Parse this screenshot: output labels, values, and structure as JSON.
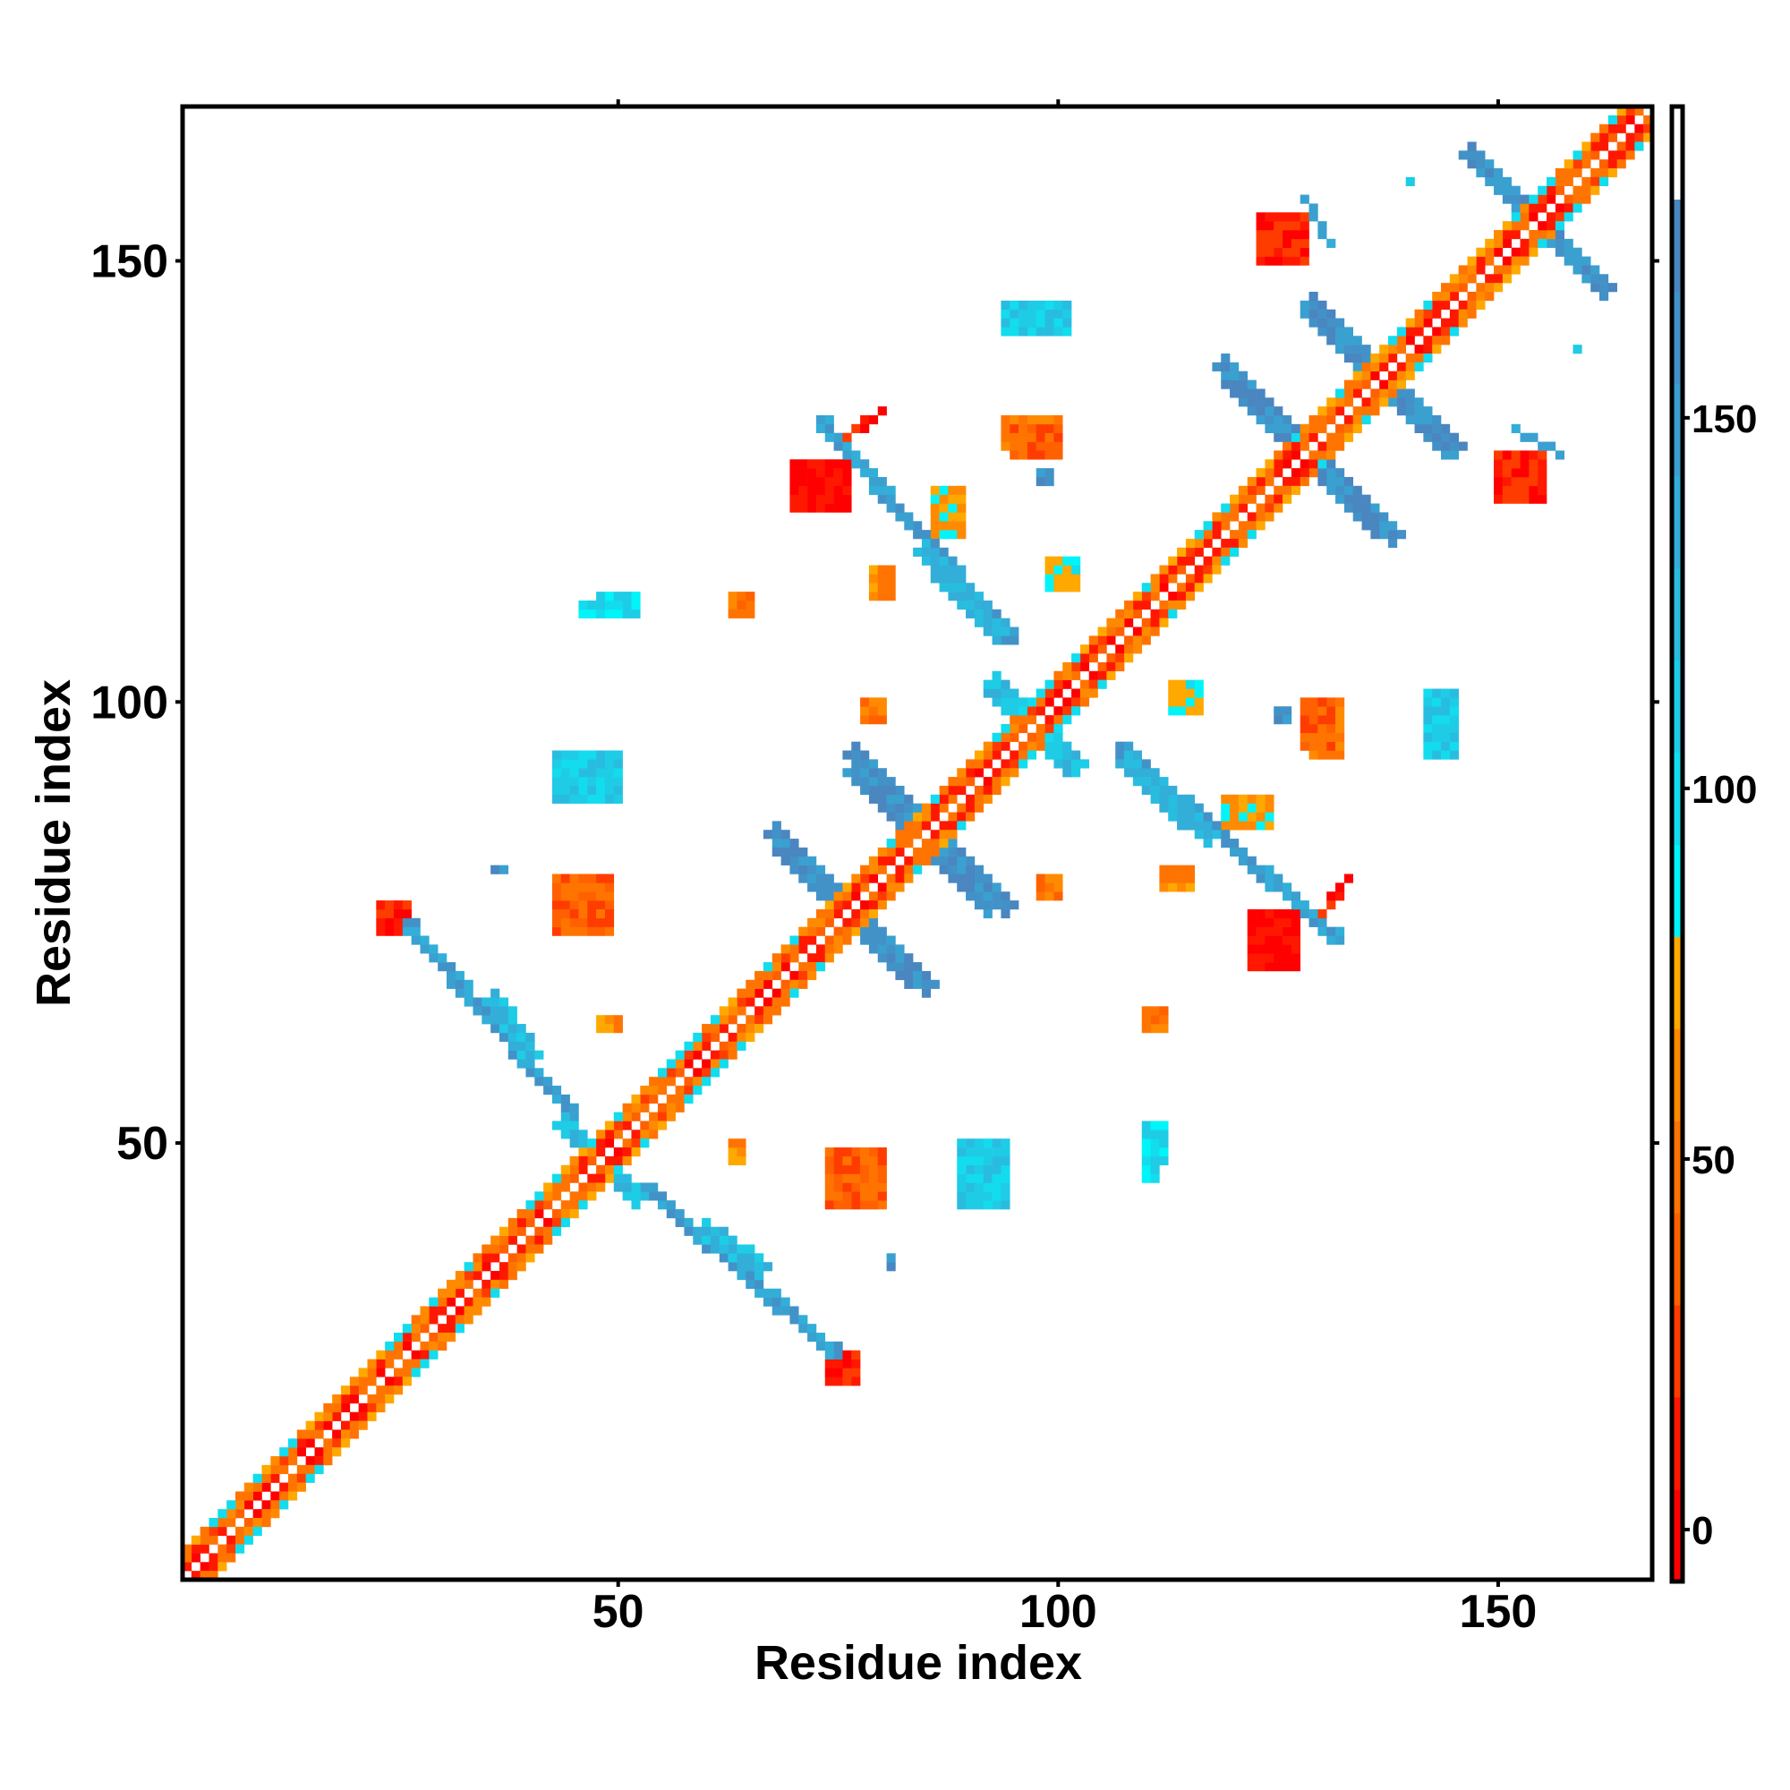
{
  "chart_data": {
    "type": "heatmap",
    "title": "",
    "xlabel": "Residue index",
    "ylabel": "Residue index",
    "n_residues": 167,
    "xlim": [
      0.5,
      167.5
    ],
    "ylim": [
      0.5,
      167.5
    ],
    "x_ticks": [
      50,
      100,
      150
    ],
    "y_ticks": [
      50,
      100,
      150
    ],
    "x_tick_labels": [
      "50",
      "100",
      "150"
    ],
    "y_tick_labels": [
      "50",
      "100",
      "150"
    ],
    "symmetric": true,
    "grid": false,
    "colorbar": {
      "placement": "right",
      "range": [
        -7,
        192
      ],
      "ticks": [
        0,
        50,
        100,
        150
      ],
      "tick_labels": [
        "0",
        "50",
        "100",
        "150"
      ],
      "bands": [
        {
          "max": 5.4,
          "color": "#ff0000"
        },
        {
          "max": 17.9,
          "color": "#ff1800"
        },
        {
          "max": 30.3,
          "color": "#ff3c00"
        },
        {
          "max": 42.7,
          "color": "#ff6000"
        },
        {
          "max": 55.1,
          "color": "#ff7400"
        },
        {
          "max": 67.6,
          "color": "#ff8a00"
        },
        {
          "max": 80.0,
          "color": "#ffa800"
        },
        {
          "max": 92.4,
          "color": "#00f4f8"
        },
        {
          "max": 104.9,
          "color": "#12dced"
        },
        {
          "max": 117.3,
          "color": "#1ecce6"
        },
        {
          "max": 129.7,
          "color": "#28bde0"
        },
        {
          "max": 142.2,
          "color": "#32aed8"
        },
        {
          "max": 154.6,
          "color": "#3aa0d0"
        },
        {
          "max": 167.0,
          "color": "#4292c8"
        },
        {
          "max": 179.5,
          "color": "#4a86c0"
        },
        {
          "max": 192.0,
          "color": "#ffffff"
        }
      ]
    },
    "diagonal": [
      {
        "offset": 1,
        "values": [
          5,
          35,
          10,
          45
        ]
      },
      {
        "offset": 2,
        "values": [
          25,
          50,
          60,
          15
        ]
      },
      {
        "offset": 3,
        "values": [
          60,
          75,
          95,
          45
        ]
      }
    ],
    "strands": [
      {
        "from": [
          26,
          75
        ],
        "to": [
          45,
          53
        ],
        "width": 1.6,
        "value": 150
      },
      {
        "from": [
          36,
          66
        ],
        "to": [
          40,
          60
        ],
        "width": 2.6,
        "value": 125
      },
      {
        "from": [
          44,
          52
        ],
        "to": [
          52,
          44
        ],
        "width": 2.0,
        "value": 120
      },
      {
        "from": [
          77,
          92
        ],
        "to": [
          94,
          77
        ],
        "width": 2.6,
        "value": 162
      },
      {
        "from": [
          68,
          85
        ],
        "to": [
          83,
          69
        ],
        "width": 2.6,
        "value": 160
      },
      {
        "from": [
          73,
          132
        ],
        "to": [
          95,
          107
        ],
        "width": 1.6,
        "value": 150
      },
      {
        "from": [
          85,
          117
        ],
        "to": [
          93,
          108
        ],
        "width": 2.6,
        "value": 130
      },
      {
        "from": [
          93,
          101
        ],
        "to": [
          102,
          93
        ],
        "width": 2.0,
        "value": 128
      },
      {
        "from": [
          129,
          144
        ],
        "to": [
          145,
          129
        ],
        "width": 2.6,
        "value": 165
      },
      {
        "from": [
          119,
          138
        ],
        "to": [
          136,
          120
        ],
        "width": 2.6,
        "value": 160
      },
      {
        "from": [
          147,
          162
        ],
        "to": [
          162,
          147
        ],
        "width": 2.6,
        "value": 165
      },
      {
        "from": [
          128,
          157
        ],
        "to": [
          131,
          152
        ],
        "width": 1.0,
        "value": 150
      },
      {
        "from": [
          76,
          130
        ],
        "to": [
          80,
          133
        ],
        "width": 1.0,
        "value": 15
      }
    ],
    "patches": [
      {
        "x": [
          23,
          26
        ],
        "y": [
          74,
          77
        ],
        "value": 15
      },
      {
        "x": [
          70,
          76
        ],
        "y": [
          122,
          127
        ],
        "value": 5
      },
      {
        "x": [
          123,
          128
        ],
        "y": [
          150,
          155
        ],
        "value": 10
      },
      {
        "x": [
          97,
          100
        ],
        "y": [
          142,
          145
        ],
        "value": 150
      },
      {
        "x": [
          94,
          100
        ],
        "y": [
          129,
          132
        ],
        "value": 55
      },
      {
        "x": [
          98,
          99
        ],
        "y": [
          125,
          126
        ],
        "value": 160
      },
      {
        "x": [
          86,
          89
        ],
        "y": [
          119,
          124
        ],
        "value": 70
      },
      {
        "x": [
          79,
          81
        ],
        "y": [
          112,
          115
        ],
        "value": 65
      },
      {
        "x": [
          99,
          102
        ],
        "y": [
          113,
          116
        ],
        "value": 90
      },
      {
        "x": [
          63,
          65
        ],
        "y": [
          111,
          112
        ],
        "value": 45
      },
      {
        "x": [
          46,
          52
        ],
        "y": [
          110,
          111
        ],
        "value": 100
      },
      {
        "x": [
          43,
          50
        ],
        "y": [
          90,
          94
        ],
        "value": 140
      },
      {
        "x": [
          43,
          49
        ],
        "y": [
          77,
          80
        ],
        "value": 40
      },
      {
        "x": [
          48,
          50
        ],
        "y": [
          63,
          64
        ],
        "value": 70
      },
      {
        "x": [
          36,
          36
        ],
        "y": [
          81,
          81
        ],
        "value": 160
      },
      {
        "x": [
          78,
          80
        ],
        "y": [
          98,
          100
        ],
        "value": 45
      },
      {
        "x": [
          113,
          116
        ],
        "y": [
          99,
          101
        ],
        "value": 80
      },
      {
        "x": [
          128,
          131
        ],
        "y": [
          95,
          100
        ],
        "value": 40
      },
      {
        "x": [
          142,
          145
        ],
        "y": [
          94,
          101
        ],
        "value": 110
      },
      {
        "x": [
          112,
          115
        ],
        "y": [
          80,
          81
        ],
        "value": 55
      },
      {
        "x": [
          110,
          112
        ],
        "y": [
          63,
          65
        ],
        "value": 45
      },
      {
        "x": [
          110,
          112
        ],
        "y": [
          48,
          52
        ],
        "value": 100
      },
      {
        "x": [
          89,
          94
        ],
        "y": [
          43,
          50
        ],
        "value": 110
      },
      {
        "x": [
          74,
          80
        ],
        "y": [
          43,
          49
        ],
        "value": 40
      },
      {
        "x": [
          63,
          64
        ],
        "y": [
          48,
          50
        ],
        "value": 65
      },
      {
        "x": [
          81,
          81
        ],
        "y": [
          37,
          37
        ],
        "value": 160
      },
      {
        "x": [
          159,
          159
        ],
        "y": [
          140,
          140
        ],
        "value": 120
      },
      {
        "x": [
          140,
          140
        ],
        "y": [
          159,
          159
        ],
        "value": 120
      }
    ]
  }
}
